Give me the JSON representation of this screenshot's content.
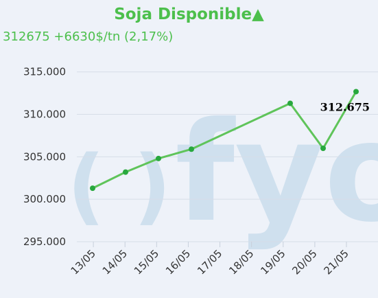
{
  "header": {
    "title": "Soja Disponible▲",
    "subtitle": "312675 +6630$/tn (2,17%)"
  },
  "watermark": {
    "text": "fyo",
    "parens": "( )",
    "color": "#cfe0ee"
  },
  "chart_data": {
    "type": "line",
    "categories": [
      "13/05",
      "14/05",
      "15/05",
      "16/05",
      "17/05",
      "18/05",
      "19/05",
      "20/05",
      "21/05"
    ],
    "x": [
      13,
      14,
      15,
      16,
      19,
      20,
      21
    ],
    "values": [
      301300,
      303200,
      304800,
      305900,
      311300,
      306000,
      312675
    ],
    "yticks": [
      "295.000",
      "300.000",
      "305.000",
      "310.000",
      "315.000"
    ],
    "ytick_values": [
      295000,
      300000,
      305000,
      310000,
      315000
    ],
    "ylim": [
      295000,
      317000
    ],
    "xlim": [
      12,
      21
    ],
    "last_label": "312.675",
    "line_color": "#5fc45a",
    "point_color": "#28a83e",
    "grid": true
  }
}
